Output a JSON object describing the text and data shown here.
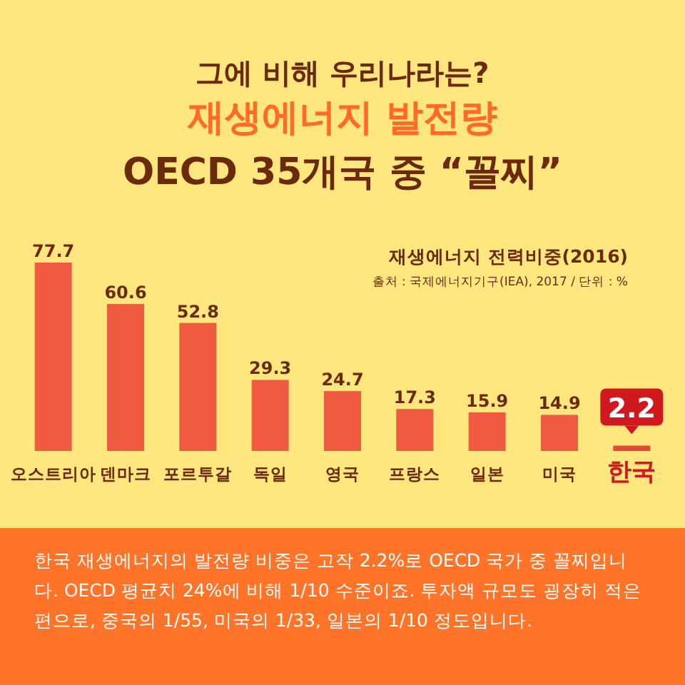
{
  "chart_data": {
    "type": "bar",
    "title": "그에 비해 우리나라는?\n재생에너지 발전량\nOECD 35개국 중 “꼴찌”",
    "subtitle": "재생에너지 전력비중(2016)",
    "annotations": [
      "출처 : 국제에너지기구(IEA), 2017  /  단위 : %",
      "한국 재생에너지의 발전량 비중은 고작 2.2%로 OECD 국가 중 꼴찌입니다. OECD 평균치 24%에 비해 1/10 수준이죠. 투자액 규모도 굉장히 적은 편으로, 중국의 1/55, 미국의 1/33, 일본의 1/10 정도입니다."
    ],
    "categories": [
      "오스트리아",
      "덴마크",
      "포르투갈",
      "독일",
      "영국",
      "프랑스",
      "일본",
      "미국",
      "한국"
    ],
    "values": [
      77.7,
      60.6,
      52.8,
      29.3,
      24.7,
      17.3,
      15.9,
      14.9,
      2.2
    ],
    "colors": [
      "#f05a40",
      "#f05a40",
      "#f05a40",
      "#f05a40",
      "#f05a40",
      "#f05a40",
      "#f05a40",
      "#f05a40",
      "#e8453a"
    ],
    "data_labels": true
  }
}
